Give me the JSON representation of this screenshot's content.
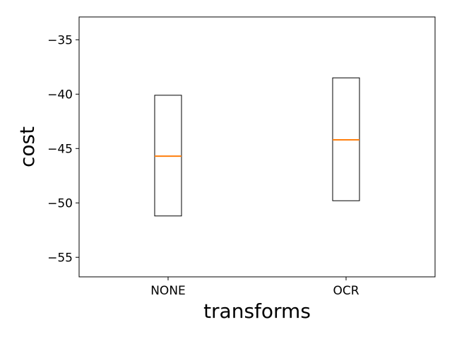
{
  "chart_data": {
    "type": "box",
    "title": "",
    "xlabel": "transforms",
    "ylabel": "cost",
    "categories": [
      "NONE",
      "OCR"
    ],
    "boxes": [
      {
        "category": "NONE",
        "q1": -51.2,
        "median": -45.7,
        "q3": -40.1
      },
      {
        "category": "OCR",
        "q1": -49.8,
        "median": -44.2,
        "q3": -38.5
      }
    ],
    "ylim": [
      -56.8,
      -32.9
    ],
    "yticks": [
      -55,
      -50,
      -45,
      -40,
      -35
    ],
    "ytick_labels": [
      "−55",
      "−50",
      "−45",
      "−40",
      "−35"
    ],
    "grid": false,
    "colors": {
      "box": "#000000",
      "median": "#ff7f0e"
    }
  }
}
